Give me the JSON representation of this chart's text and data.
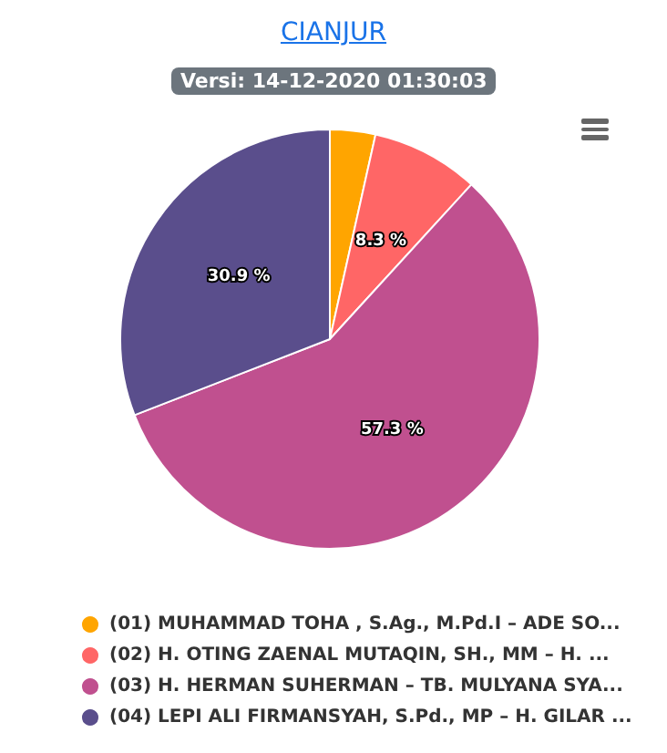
{
  "chart_data": {
    "type": "pie",
    "title": "CIANJUR",
    "subtitle": "Versi: 14-12-2020 01:30:03",
    "categories": [
      "(01) MUHAMMAD TOHA , S.Ag., M.Pd.I – ADE SO...",
      "(02) H. OTING ZAENAL MUTAQIN, SH., MM – H. ...",
      "(03) H. HERMAN SUHERMAN – TB. MULYANA SYA...",
      "(04) LEPI ALI FIRMANSYAH, S.Pd., MP – H. GILAR ..."
    ],
    "values": [
      3.5,
      8.3,
      57.3,
      30.9
    ],
    "colors": [
      "#ffa500",
      "#ff6666",
      "#c0508f",
      "#5a4e8c"
    ],
    "value_labels": [
      null,
      "8.3 %",
      "57.3 %",
      "30.9 %"
    ],
    "legend": "bottom"
  }
}
